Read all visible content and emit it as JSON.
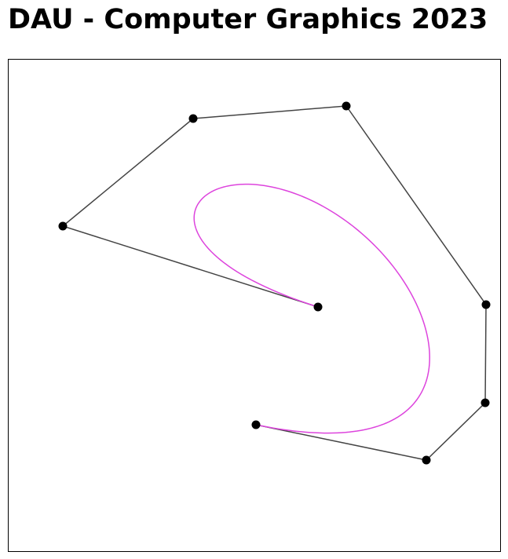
{
  "page": {
    "title": "DAU - Computer Graphics 2023"
  },
  "canvas": {
    "background": "#ffffff",
    "border_color": "#000000",
    "control_polygon_color": "#444444",
    "control_point_color": "#000000",
    "curve_color": "#dd44dd"
  }
}
